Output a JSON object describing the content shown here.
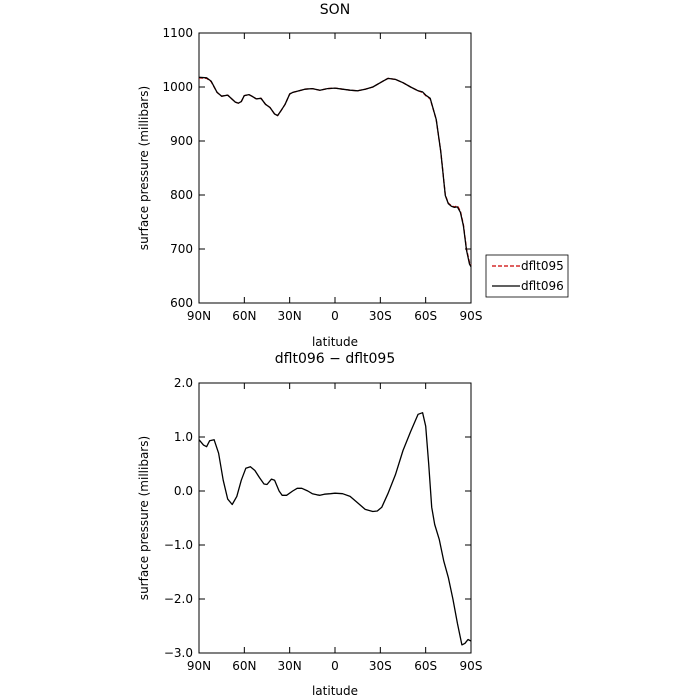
{
  "colors": {
    "dflt095": "#cc0000",
    "dflt096": "#000000"
  },
  "chart_data": [
    {
      "type": "line",
      "title": "SON",
      "xlabel": "latitude",
      "ylabel": "surface pressure (millibars)",
      "x_ticks": [
        90,
        60,
        30,
        0,
        -30,
        -60,
        -90
      ],
      "x_tick_labels": [
        "90N",
        "60N",
        "30N",
        "0",
        "30S",
        "60S",
        "90S"
      ],
      "xlim": [
        90,
        -90
      ],
      "ylim": [
        600,
        1100
      ],
      "y_ticks": [
        600,
        700,
        800,
        900,
        1000,
        1100
      ],
      "y_tick_labels": [
        "600",
        "700",
        "800",
        "900",
        "1000",
        "1100"
      ],
      "legend": "right-side",
      "series": [
        {
          "name": "dflt095",
          "style": "dashed",
          "color": "#cc0000",
          "x": [
            90,
            85,
            82,
            78,
            75,
            71,
            66,
            64,
            62,
            60,
            57,
            55,
            52,
            49,
            46,
            43,
            40,
            38,
            36,
            33,
            30,
            28,
            25,
            20,
            15,
            10,
            5,
            0,
            -5,
            -10,
            -15,
            -20,
            -25,
            -30,
            -35,
            -40,
            -45,
            -50,
            -55,
            -58,
            -60,
            -63,
            -67,
            -70,
            -73,
            -75,
            -77,
            -79,
            -81,
            -83,
            -85,
            -87,
            -89,
            -90
          ],
          "y": [
            1017,
            1016,
            1010,
            990,
            983,
            985,
            972,
            970,
            973,
            984,
            986,
            983,
            978,
            979,
            968,
            962,
            950,
            947,
            955,
            968,
            987,
            990,
            992,
            996,
            997,
            994,
            997,
            998,
            996,
            994,
            993,
            996,
            1000,
            1008,
            1016,
            1014,
            1008,
            1000,
            993,
            990,
            984,
            978,
            940,
            880,
            800,
            785,
            780,
            778,
            780,
            770,
            745,
            700,
            675,
            670
          ]
        },
        {
          "name": "dflt096",
          "style": "solid",
          "color": "#000000",
          "x": [
            90,
            85,
            82,
            78,
            75,
            71,
            66,
            64,
            62,
            60,
            57,
            55,
            52,
            49,
            46,
            43,
            40,
            38,
            36,
            33,
            30,
            28,
            25,
            20,
            15,
            10,
            5,
            0,
            -5,
            -10,
            -15,
            -20,
            -25,
            -30,
            -35,
            -40,
            -45,
            -50,
            -55,
            -58,
            -60,
            -63,
            -67,
            -70,
            -73,
            -75,
            -77,
            -79,
            -81,
            -83,
            -85,
            -87,
            -89,
            -90
          ],
          "y": [
            1018,
            1017,
            1011,
            990,
            983,
            985,
            972,
            970,
            973,
            984,
            986,
            983,
            978,
            979,
            968,
            962,
            950,
            947,
            955,
            968,
            987,
            990,
            992,
            996,
            997,
            994,
            997,
            998,
            996,
            994,
            993,
            996,
            1000,
            1008,
            1016,
            1014,
            1008,
            1000,
            993,
            991,
            985,
            979,
            940,
            880,
            799,
            784,
            779,
            777,
            778,
            768,
            743,
            698,
            672,
            667
          ]
        }
      ]
    },
    {
      "type": "line",
      "title": "dflt096 − dflt095",
      "xlabel": "latitude",
      "ylabel": "surface pressure (millibars)",
      "x_ticks": [
        90,
        60,
        30,
        0,
        -30,
        -60,
        -90
      ],
      "x_tick_labels": [
        "90N",
        "60N",
        "30N",
        "0",
        "30S",
        "60S",
        "90S"
      ],
      "xlim": [
        90,
        -90
      ],
      "ylim": [
        -3.0,
        2.0
      ],
      "y_ticks": [
        -3,
        -2,
        -1,
        0,
        1,
        2
      ],
      "y_tick_labels": [
        "−3.0",
        "−2.0",
        "−1.0",
        "0.0",
        "1.0",
        "2.0"
      ],
      "series": [
        {
          "style": "solid",
          "color": "#000000",
          "x": [
            90,
            87,
            85,
            83,
            80,
            77,
            74,
            71,
            68,
            65,
            62,
            59,
            56,
            53,
            50,
            47,
            45,
            42,
            40,
            37,
            35,
            32,
            28,
            25,
            22,
            18,
            15,
            12,
            10,
            7,
            3,
            0,
            -5,
            -10,
            -15,
            -20,
            -25,
            -28,
            -31,
            -35,
            -40,
            -45,
            -50,
            -55,
            -58,
            -60,
            -62,
            -64,
            -66,
            -69,
            -72,
            -75,
            -78,
            -81,
            -84,
            -86,
            -88,
            -90
          ],
          "y": [
            0.95,
            0.85,
            0.82,
            0.93,
            0.95,
            0.7,
            0.2,
            -0.15,
            -0.25,
            -0.1,
            0.2,
            0.42,
            0.45,
            0.38,
            0.25,
            0.13,
            0.12,
            0.22,
            0.2,
            0.0,
            -0.08,
            -0.08,
            0.0,
            0.05,
            0.05,
            0.0,
            -0.05,
            -0.07,
            -0.08,
            -0.06,
            -0.05,
            -0.04,
            -0.05,
            -0.1,
            -0.22,
            -0.34,
            -0.38,
            -0.37,
            -0.3,
            -0.05,
            0.3,
            0.75,
            1.1,
            1.42,
            1.45,
            1.2,
            0.5,
            -0.3,
            -0.62,
            -0.9,
            -1.3,
            -1.6,
            -2.0,
            -2.45,
            -2.85,
            -2.82,
            -2.75,
            -2.78
          ]
        }
      ]
    }
  ]
}
